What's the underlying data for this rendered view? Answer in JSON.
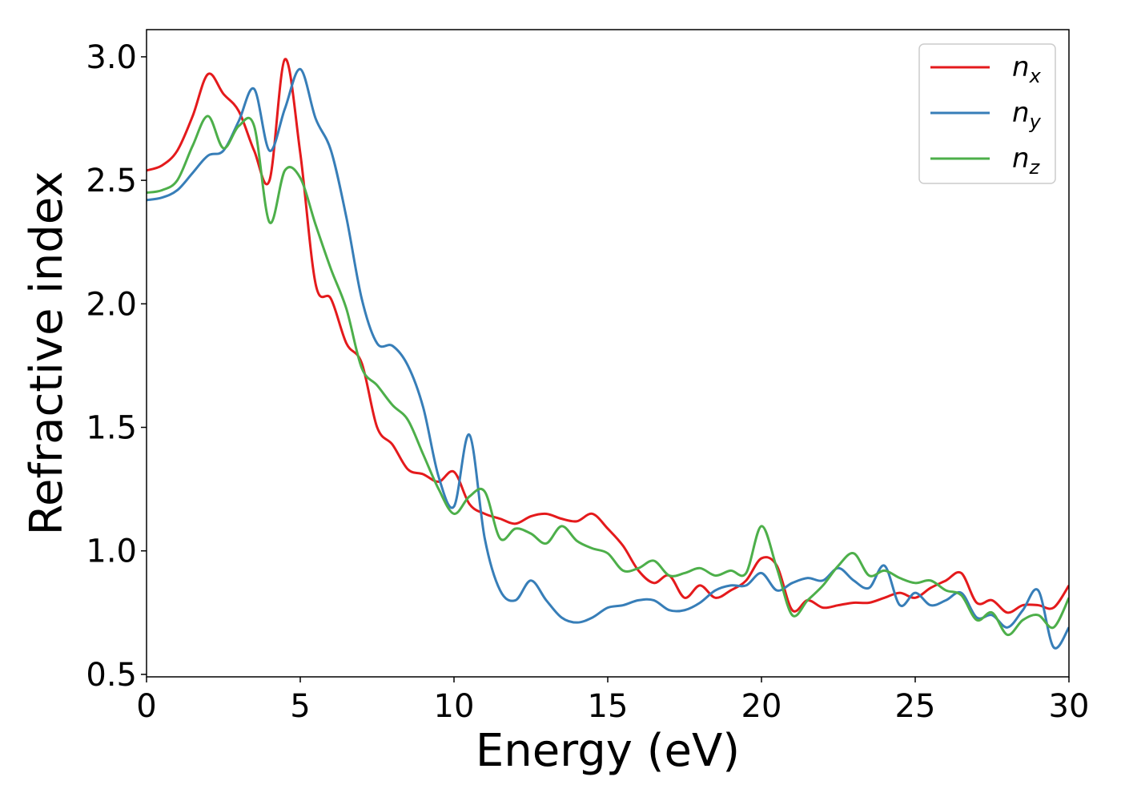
{
  "chart_data": {
    "type": "line",
    "title": "",
    "xlabel": "Energy (eV)",
    "ylabel": "Refractive index",
    "xlim": [
      0,
      30
    ],
    "ylim": [
      0.49,
      3.11
    ],
    "xticks": [
      0,
      5,
      10,
      15,
      20,
      25,
      30
    ],
    "yticks": [
      0.5,
      1.0,
      1.5,
      2.0,
      2.5,
      3.0
    ],
    "xtick_labels": [
      "0",
      "5",
      "10",
      "15",
      "20",
      "25",
      "30"
    ],
    "ytick_labels": [
      "0.5",
      "1.0",
      "1.5",
      "2.0",
      "2.5",
      "3.0"
    ],
    "grid": false,
    "legend_position": "top-right",
    "series": [
      {
        "name": "n_x",
        "label_base": "n",
        "label_sub": "x",
        "color": "#e41a1c",
        "x": [
          0,
          0.5,
          1,
          1.5,
          2,
          2.5,
          3,
          3.5,
          4,
          4.5,
          5,
          5.5,
          6,
          6.5,
          7,
          7.5,
          8,
          8.5,
          9,
          9.5,
          10,
          10.5,
          11,
          11.5,
          12,
          12.5,
          13,
          13.5,
          14,
          14.5,
          15,
          15.5,
          16,
          16.5,
          17,
          17.5,
          18,
          18.5,
          19,
          19.5,
          20,
          20.5,
          21,
          21.5,
          22,
          22.5,
          23,
          23.5,
          24,
          24.5,
          25,
          25.5,
          26,
          26.5,
          27,
          27.5,
          28,
          28.5,
          29,
          29.5,
          30
        ],
        "y": [
          2.54,
          2.56,
          2.62,
          2.76,
          2.93,
          2.85,
          2.78,
          2.62,
          2.5,
          2.99,
          2.61,
          2.08,
          2.02,
          1.84,
          1.76,
          1.5,
          1.43,
          1.33,
          1.31,
          1.28,
          1.32,
          1.19,
          1.15,
          1.13,
          1.11,
          1.14,
          1.15,
          1.13,
          1.12,
          1.15,
          1.09,
          1.02,
          0.92,
          0.87,
          0.9,
          0.81,
          0.86,
          0.81,
          0.84,
          0.88,
          0.97,
          0.94,
          0.76,
          0.8,
          0.77,
          0.78,
          0.79,
          0.79,
          0.81,
          0.83,
          0.81,
          0.85,
          0.88,
          0.91,
          0.79,
          0.8,
          0.75,
          0.78,
          0.78,
          0.77,
          0.86
        ]
      },
      {
        "name": "n_y",
        "label_base": "n",
        "label_sub": "y",
        "color": "#377eb8",
        "x": [
          0,
          0.5,
          1,
          1.5,
          2,
          2.5,
          3,
          3.5,
          4,
          4.5,
          5,
          5.5,
          6,
          6.5,
          7,
          7.5,
          8,
          8.5,
          9,
          9.5,
          10,
          10.5,
          11,
          11.5,
          12,
          12.5,
          13,
          13.5,
          14,
          14.5,
          15,
          15.5,
          16,
          16.5,
          17,
          17.5,
          18,
          18.5,
          19,
          19.5,
          20,
          20.5,
          21,
          21.5,
          22,
          22.5,
          23,
          23.5,
          24,
          24.5,
          25,
          25.5,
          26,
          26.5,
          27,
          27.5,
          28,
          28.5,
          29,
          29.5,
          30
        ],
        "y": [
          2.42,
          2.43,
          2.46,
          2.53,
          2.6,
          2.62,
          2.74,
          2.87,
          2.62,
          2.79,
          2.95,
          2.75,
          2.62,
          2.35,
          2.02,
          1.84,
          1.83,
          1.75,
          1.58,
          1.3,
          1.18,
          1.47,
          1.05,
          0.84,
          0.8,
          0.88,
          0.8,
          0.73,
          0.71,
          0.73,
          0.77,
          0.78,
          0.8,
          0.8,
          0.76,
          0.76,
          0.79,
          0.84,
          0.86,
          0.86,
          0.91,
          0.84,
          0.87,
          0.89,
          0.88,
          0.93,
          0.88,
          0.85,
          0.94,
          0.78,
          0.83,
          0.78,
          0.8,
          0.83,
          0.73,
          0.74,
          0.69,
          0.76,
          0.84,
          0.61,
          0.69
        ]
      },
      {
        "name": "n_z",
        "label_base": "n",
        "label_sub": "z",
        "color": "#4daf4a",
        "x": [
          0,
          0.5,
          1,
          1.5,
          2,
          2.5,
          3,
          3.5,
          4,
          4.5,
          5,
          5.5,
          6,
          6.5,
          7,
          7.5,
          8,
          8.5,
          9,
          9.5,
          10,
          10.5,
          11,
          11.5,
          12,
          12.5,
          13,
          13.5,
          14,
          14.5,
          15,
          15.5,
          16,
          16.5,
          17,
          17.5,
          18,
          18.5,
          19,
          19.5,
          20,
          20.5,
          21,
          21.5,
          22,
          22.5,
          23,
          23.5,
          24,
          24.5,
          25,
          25.5,
          26,
          26.5,
          27,
          27.5,
          28,
          28.5,
          29,
          29.5,
          30
        ],
        "y": [
          2.45,
          2.46,
          2.5,
          2.64,
          2.76,
          2.63,
          2.72,
          2.72,
          2.33,
          2.54,
          2.51,
          2.32,
          2.14,
          1.98,
          1.74,
          1.67,
          1.59,
          1.53,
          1.39,
          1.25,
          1.15,
          1.22,
          1.24,
          1.05,
          1.09,
          1.07,
          1.03,
          1.1,
          1.04,
          1.01,
          0.99,
          0.92,
          0.93,
          0.96,
          0.9,
          0.91,
          0.93,
          0.9,
          0.92,
          0.91,
          1.1,
          0.93,
          0.74,
          0.8,
          0.86,
          0.94,
          0.99,
          0.9,
          0.92,
          0.89,
          0.87,
          0.88,
          0.84,
          0.82,
          0.72,
          0.75,
          0.66,
          0.72,
          0.74,
          0.69,
          0.81
        ]
      }
    ]
  }
}
